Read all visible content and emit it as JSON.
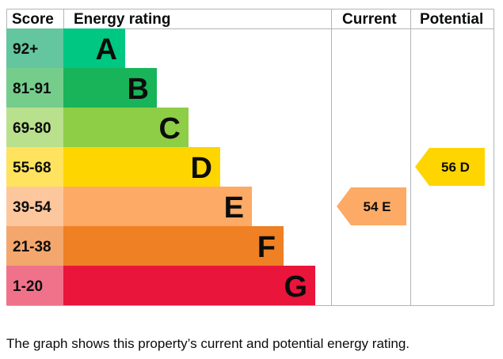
{
  "headers": {
    "score": "Score",
    "rating": "Energy rating",
    "current": "Current",
    "potential": "Potential"
  },
  "caption": "The graph shows this property’s current and potential energy rating.",
  "chart_data": {
    "type": "bar",
    "title": "",
    "categories": [
      "A",
      "B",
      "C",
      "D",
      "E",
      "F",
      "G"
    ],
    "bands": [
      {
        "letter": "A",
        "range": "92+",
        "color": "#00c781",
        "score_color": "#64c69e"
      },
      {
        "letter": "B",
        "range": "81-91",
        "color": "#19b459",
        "score_color": "#75cd8b"
      },
      {
        "letter": "C",
        "range": "69-80",
        "color": "#8dce46",
        "score_color": "#b9e08d"
      },
      {
        "letter": "D",
        "range": "55-68",
        "color": "#ffd500",
        "score_color": "#ffe35e"
      },
      {
        "letter": "E",
        "range": "39-54",
        "color": "#fcaa65",
        "score_color": "#fdc79e"
      },
      {
        "letter": "F",
        "range": "21-38",
        "color": "#ef8023",
        "score_color": "#f4a76d"
      },
      {
        "letter": "G",
        "range": "1-20",
        "color": "#e9153b",
        "score_color": "#f0728a"
      }
    ],
    "current": {
      "value": 54,
      "band": "E",
      "label": "54  E",
      "color": "#fcaa65"
    },
    "potential": {
      "value": 56,
      "band": "D",
      "label": "56  D",
      "color": "#ffd500"
    }
  }
}
